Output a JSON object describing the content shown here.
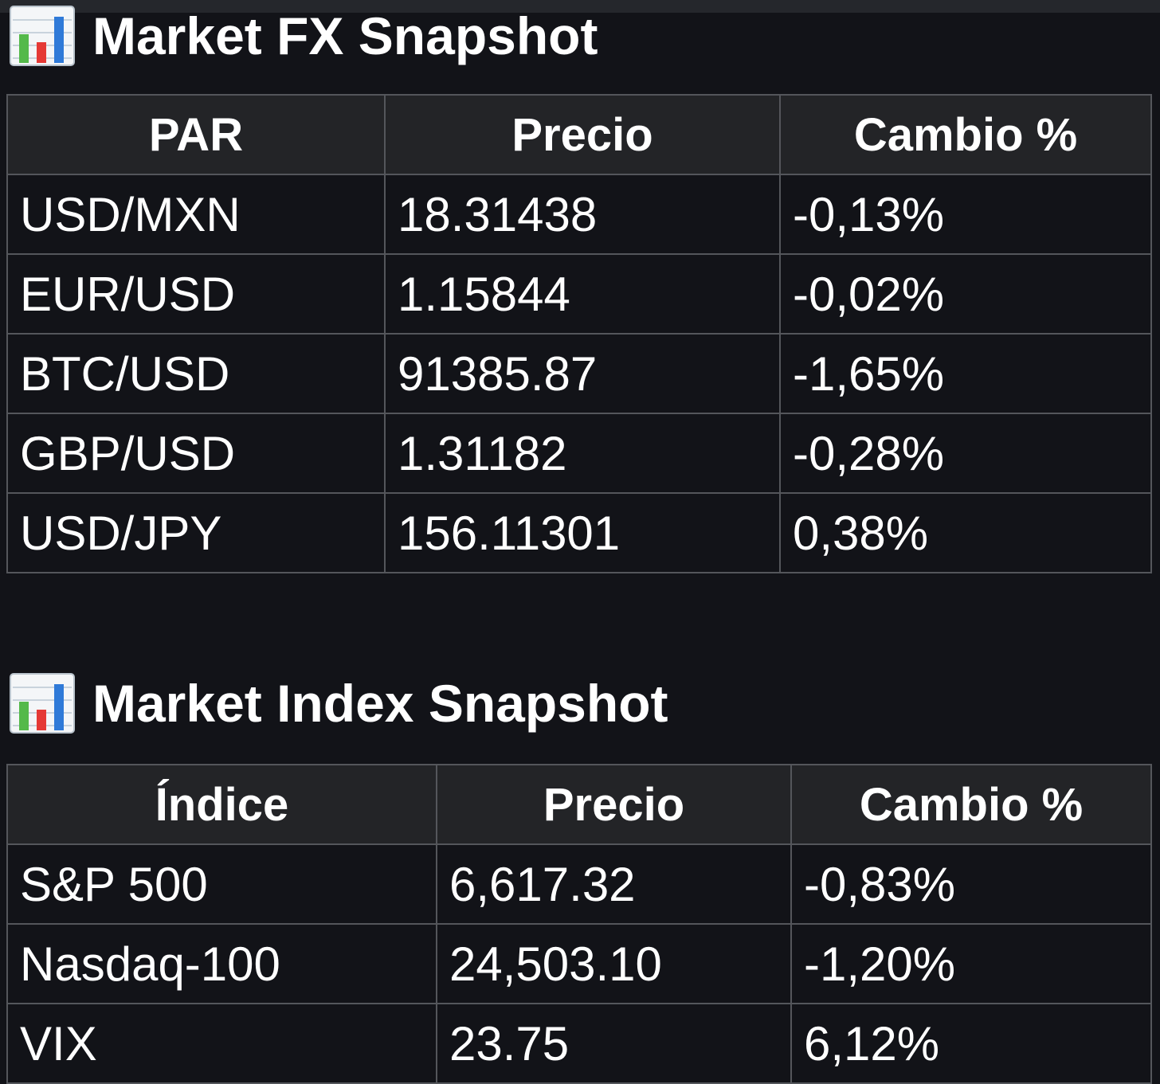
{
  "colors": {
    "negative": "#f3563a",
    "positive": "#3db93d",
    "background": "#121318",
    "header_bg": "#232427"
  },
  "fx": {
    "icon": "bar-chart-icon",
    "title": "Market FX Snapshot",
    "headers": [
      "PAR",
      "Precio",
      "Cambio %"
    ],
    "rows": [
      {
        "pair": "USD/MXN",
        "price": "18.31438",
        "change": "-0,13%",
        "direction": "negative"
      },
      {
        "pair": "EUR/USD",
        "price": "1.15844",
        "change": "-0,02%",
        "direction": "negative"
      },
      {
        "pair": "BTC/USD",
        "price": "91385.87",
        "change": "-1,65%",
        "direction": "negative"
      },
      {
        "pair": "GBP/USD",
        "price": "1.31182",
        "change": "-0,28%",
        "direction": "negative"
      },
      {
        "pair": "USD/JPY",
        "price": "156.11301",
        "change": "0,38%",
        "direction": "positive"
      }
    ]
  },
  "index": {
    "icon": "bar-chart-icon",
    "title": "Market Index Snapshot",
    "headers": [
      "Índice",
      "Precio",
      "Cambio %"
    ],
    "rows": [
      {
        "name": "S&P 500",
        "price": "6,617.32",
        "change": "-0,83%",
        "direction": "negative"
      },
      {
        "name": "Nasdaq-100",
        "price": "24,503.10",
        "change": "-1,20%",
        "direction": "negative"
      },
      {
        "name": "VIX",
        "price": "23.75",
        "change": "6,12%",
        "direction": "positive"
      }
    ]
  }
}
